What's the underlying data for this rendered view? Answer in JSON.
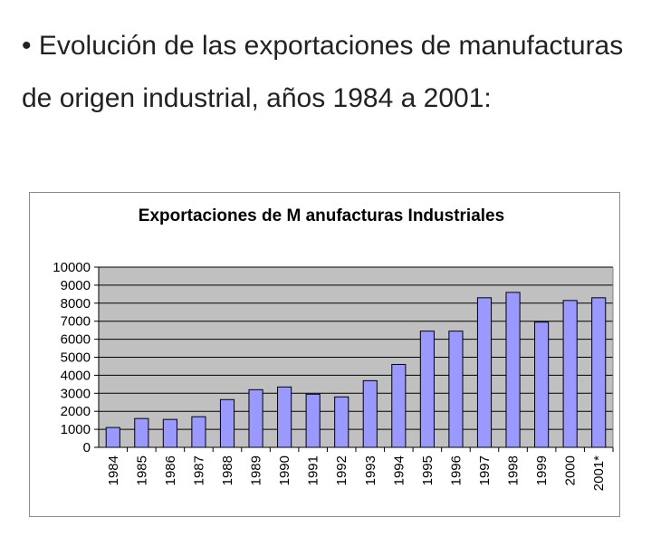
{
  "intro": {
    "bullet": "•",
    "text": "Evolución de las exportaciones de manufacturas de origen industrial, años 1984 a 2001:"
  },
  "chart_data": {
    "type": "bar",
    "title": "Exportaciones de M anufacturas Industriales",
    "xlabel": "",
    "ylabel": "",
    "categories": [
      "1984",
      "1985",
      "1986",
      "1987",
      "1988",
      "1989",
      "1990",
      "1991",
      "1992",
      "1993",
      "1994",
      "1995",
      "1996",
      "1997",
      "1998",
      "1999",
      "2000",
      "2001*"
    ],
    "values": [
      1100,
      1600,
      1550,
      1700,
      2650,
      3200,
      3350,
      2950,
      2800,
      3700,
      4600,
      6450,
      6450,
      8300,
      8600,
      6950,
      8150,
      8300
    ],
    "ylim": [
      0,
      10000
    ],
    "yticks": [
      "0",
      "1000",
      "2000",
      "3000",
      "4000",
      "5000",
      "6000",
      "7000",
      "8000",
      "9000",
      "10000"
    ],
    "grid": true,
    "legend": "none",
    "colors": {
      "bar": "#9999ff",
      "plot_bg": "#c0c0c0",
      "gridline": "#000000",
      "bar_edge": "#000000"
    }
  }
}
